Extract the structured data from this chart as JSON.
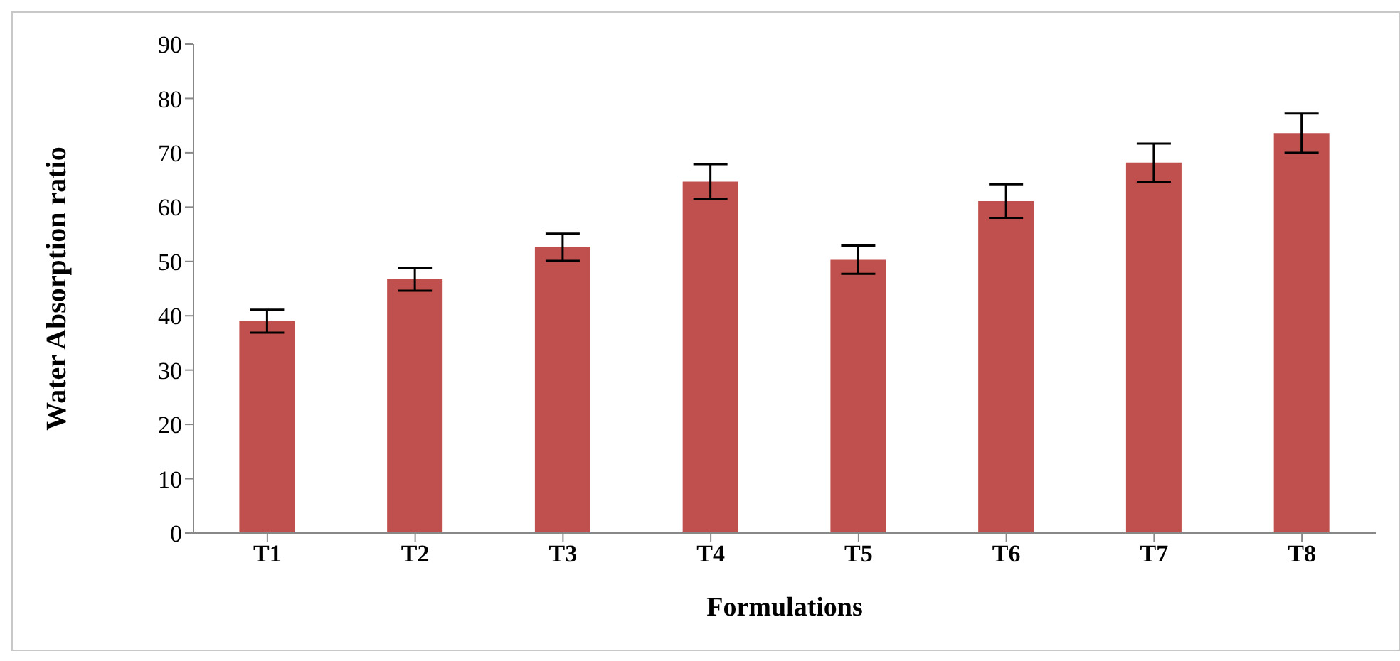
{
  "chart_data": {
    "type": "bar",
    "xlabel": "Formulations",
    "ylabel": "Water Absorption ratio",
    "categories": [
      "T1",
      "T2",
      "T3",
      "T4",
      "T5",
      "T6",
      "T7",
      "T8"
    ],
    "values": [
      39.0,
      46.7,
      52.6,
      64.7,
      50.3,
      61.1,
      68.2,
      73.6
    ],
    "errors": [
      2.1,
      2.1,
      2.5,
      3.2,
      2.6,
      3.1,
      3.5,
      3.6
    ],
    "color": "#c0504d",
    "ylim": [
      0,
      90
    ],
    "yticks": [
      0,
      10,
      20,
      30,
      40,
      50,
      60,
      70,
      80,
      90
    ],
    "grid": false,
    "legend": false
  }
}
